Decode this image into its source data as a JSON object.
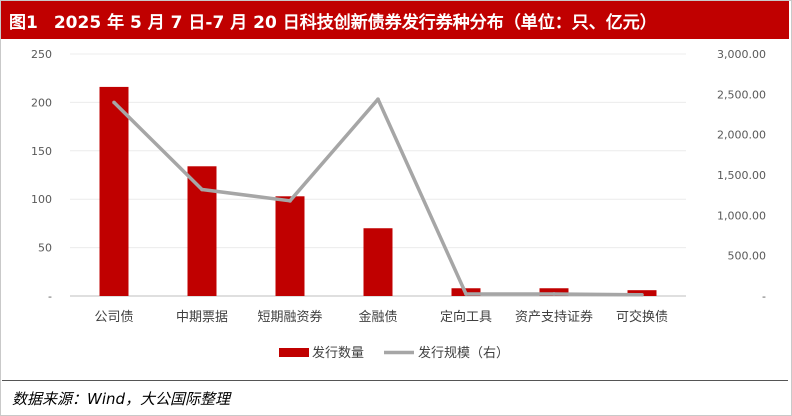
{
  "header": {
    "figure_no": "图1",
    "title": "2025 年 5 月 7 日-7 月 20 日科技创新债券发行券种分布（单位：只、亿元）"
  },
  "footer": {
    "source": "数据来源：Wind，大公国际整理"
  },
  "colors": {
    "brand_red": "#c00000",
    "bar": "#c00000",
    "line": "#a6a6a6",
    "axis_text": "#595959"
  },
  "chart_data": {
    "type": "bar",
    "categories": [
      "公司债",
      "中期票据",
      "短期融资券",
      "金融债",
      "定向工具",
      "资产支持证券",
      "可交换债"
    ],
    "series": [
      {
        "name": "发行数量",
        "type": "bar",
        "axis": "left",
        "values": [
          216,
          134,
          103,
          70,
          8,
          8,
          6
        ]
      },
      {
        "name": "发行规模（右）",
        "type": "line",
        "axis": "right",
        "values": [
          2400,
          1320,
          1180,
          2440,
          25,
          25,
          15
        ]
      }
    ],
    "y_left": {
      "min": 0,
      "max": 250,
      "ticks": [
        "-",
        "50",
        "100",
        "150",
        "200",
        "250"
      ]
    },
    "y_right": {
      "min": 0,
      "max": 3000,
      "ticks": [
        "-",
        "500.00",
        "1,000.00",
        "1,500.00",
        "2,000.00",
        "2,500.00",
        "3,000.00"
      ]
    },
    "grid": true,
    "legend_position": "bottom"
  }
}
